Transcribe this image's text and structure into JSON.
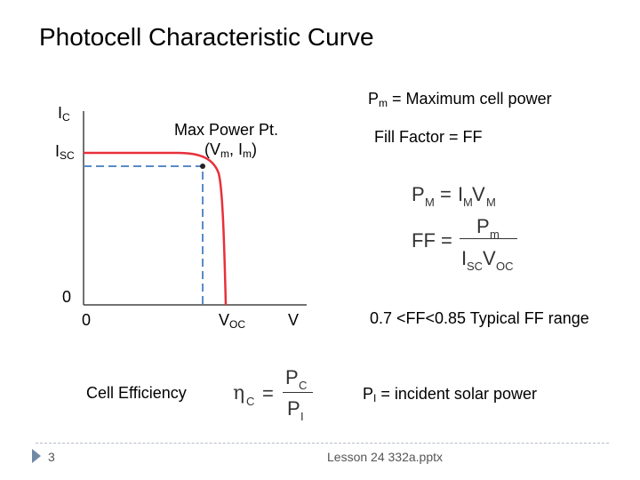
{
  "title": "Photocell Characteristic Curve",
  "pm_note": "= Maximum cell power",
  "ff_note": "Fill Factor = FF",
  "ff_range": "0.7 <FF<0.85 Typical FF range",
  "pi_note": "= incident solar power",
  "cell_eff": "Cell Efficiency",
  "footer": {
    "slide_number": "3",
    "filename": "Lesson 24 332a.pptx"
  },
  "graph": {
    "y_axis": "I",
    "y_axis_sub": "C",
    "isc": "I",
    "isc_sub": "SC",
    "zero_y": "0",
    "zero_x": "0",
    "voc": "V",
    "voc_sub": "OC",
    "x_axis": "V",
    "max_power_label": "Max Power Pt.",
    "max_power_coords": "(V",
    "max_power_coords_m": "m",
    "max_power_coords_mid": ", I",
    "max_power_coords_m2": "m",
    "max_power_coords_end": ")",
    "curve_color": "#e8303a",
    "dashed_color": "#5a8bc6"
  }
}
